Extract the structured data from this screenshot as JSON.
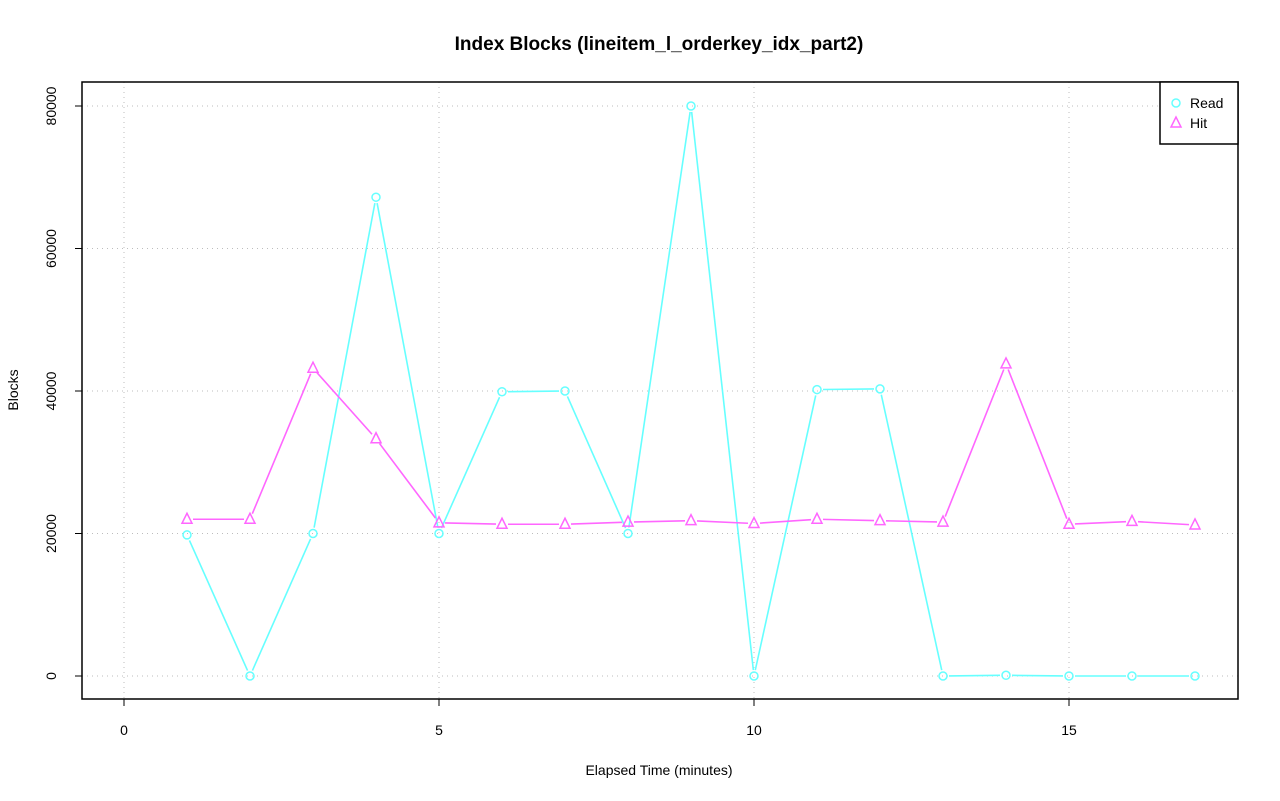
{
  "chart_data": {
    "type": "line",
    "title": "Index Blocks (lineitem_l_orderkey_idx_part2)",
    "xlabel": "Elapsed Time (minutes)",
    "ylabel": "Blocks",
    "xlim": [
      0,
      17
    ],
    "ylim": [
      0,
      80000
    ],
    "x_ticks": [
      0,
      5,
      10,
      15
    ],
    "y_ticks": [
      0,
      20000,
      40000,
      60000,
      80000
    ],
    "x_tick_labels": [
      "0",
      "5",
      "10",
      "15"
    ],
    "y_tick_labels": [
      "0",
      "20000",
      "40000",
      "60000",
      "80000"
    ],
    "grid": true,
    "legend_position": "top-right",
    "x": [
      1,
      2,
      3,
      4,
      5,
      6,
      7,
      8,
      9,
      10,
      11,
      12,
      13,
      14,
      15,
      16,
      17
    ],
    "series": [
      {
        "name": "Read",
        "color": "#66ffff",
        "marker": "circle",
        "values": [
          19800,
          0,
          20000,
          67200,
          20000,
          39900,
          40000,
          20000,
          80000,
          0,
          40200,
          40300,
          0,
          100,
          0,
          0,
          0
        ]
      },
      {
        "name": "Hit",
        "color": "#ff66ff",
        "marker": "triangle",
        "values": [
          22000,
          22000,
          43200,
          33300,
          21500,
          21300,
          21300,
          21600,
          21800,
          21400,
          22000,
          21800,
          21600,
          43800,
          21300,
          21700,
          21200
        ]
      }
    ]
  }
}
